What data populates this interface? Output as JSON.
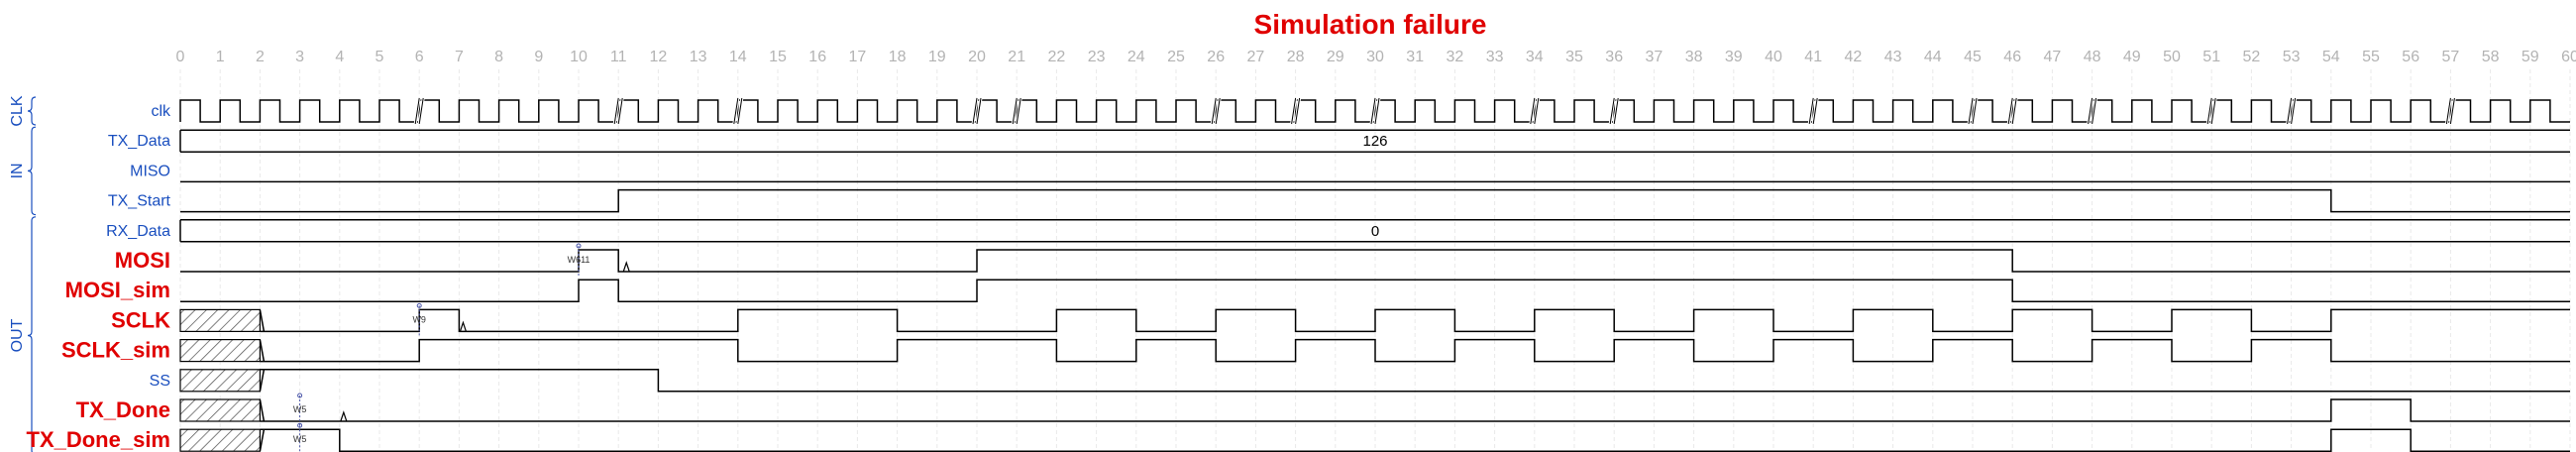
{
  "title": "Simulation failure",
  "ticks": [
    "0",
    "1",
    "2",
    "3",
    "4",
    "5",
    "6",
    "7",
    "8",
    "9",
    "10",
    "11",
    "12",
    "13",
    "14",
    "15",
    "16",
    "17",
    "18",
    "19",
    "20",
    "21",
    "22",
    "23",
    "24",
    "25",
    "26",
    "27",
    "28",
    "29",
    "30",
    "31",
    "32",
    "33",
    "34",
    "35",
    "36",
    "37",
    "38",
    "39",
    "40",
    "41",
    "42",
    "43",
    "44",
    "45",
    "46",
    "47",
    "48",
    "49",
    "50",
    "51",
    "52",
    "53",
    "54",
    "55",
    "56",
    "57",
    "58",
    "59",
    "60"
  ],
  "groups": [
    {
      "label": "CLK",
      "first": 0,
      "last": 0
    },
    {
      "label": "IN",
      "first": 1,
      "last": 3
    },
    {
      "label": "OUT",
      "first": 4,
      "last": 11
    }
  ],
  "signals": [
    {
      "name": "clk",
      "style": "normal",
      "type": "clock",
      "gaps": [
        6,
        11,
        14,
        20,
        21,
        26,
        28,
        30,
        34,
        36,
        41,
        45,
        46,
        48,
        51,
        53,
        57
      ]
    },
    {
      "name": "TX_Data",
      "style": "normal",
      "type": "bus",
      "value": "126"
    },
    {
      "name": "MISO",
      "style": "normal",
      "type": "level",
      "initial": 0,
      "edges": []
    },
    {
      "name": "TX_Start",
      "style": "normal",
      "type": "level",
      "initial": 0,
      "edges": [
        11,
        54
      ]
    },
    {
      "name": "RX_Data",
      "style": "normal",
      "type": "bus",
      "value": "0"
    },
    {
      "name": "MOSI",
      "style": "error",
      "type": "level",
      "initial": 0,
      "edges": [
        10,
        11,
        20,
        46
      ],
      "glitches": [
        11.2
      ],
      "marker": {
        "at": 10,
        "label": "W611"
      }
    },
    {
      "name": "MOSI_sim",
      "style": "error",
      "type": "level",
      "initial": 0,
      "edges": [
        10,
        11,
        20,
        46
      ]
    },
    {
      "name": "SCLK",
      "style": "error",
      "type": "level",
      "initial": 0,
      "unknown_until": 2,
      "edges": [
        6,
        7,
        14,
        18,
        22,
        24,
        26,
        28,
        30,
        32,
        34,
        36,
        38,
        40,
        42,
        44,
        46,
        48,
        50,
        52,
        54
      ],
      "glitches": [
        7.1
      ],
      "marker": {
        "at": 6,
        "label": "W9"
      }
    },
    {
      "name": "SCLK_sim",
      "style": "error",
      "type": "level",
      "initial": 0,
      "unknown_until": 2,
      "edges": [
        6,
        14,
        18,
        22,
        24,
        26,
        28,
        30,
        32,
        34,
        36,
        38,
        40,
        42,
        44,
        46,
        48,
        50,
        52,
        54
      ]
    },
    {
      "name": "SS",
      "style": "normal",
      "type": "level",
      "initial": 1,
      "unknown_until": 2,
      "edges": [
        12
      ]
    },
    {
      "name": "TX_Done",
      "style": "error",
      "type": "level",
      "initial": 0,
      "unknown_until": 2,
      "edges": [
        54,
        56
      ],
      "glitches": [
        4.1
      ],
      "marker": {
        "at": 3,
        "label": "W5"
      }
    },
    {
      "name": "TX_Done_sim",
      "style": "error",
      "type": "level",
      "initial": 1,
      "unknown_until": 2,
      "edges": [
        4,
        54,
        56
      ],
      "marker": {
        "at": 3,
        "label": "W5"
      }
    }
  ]
}
